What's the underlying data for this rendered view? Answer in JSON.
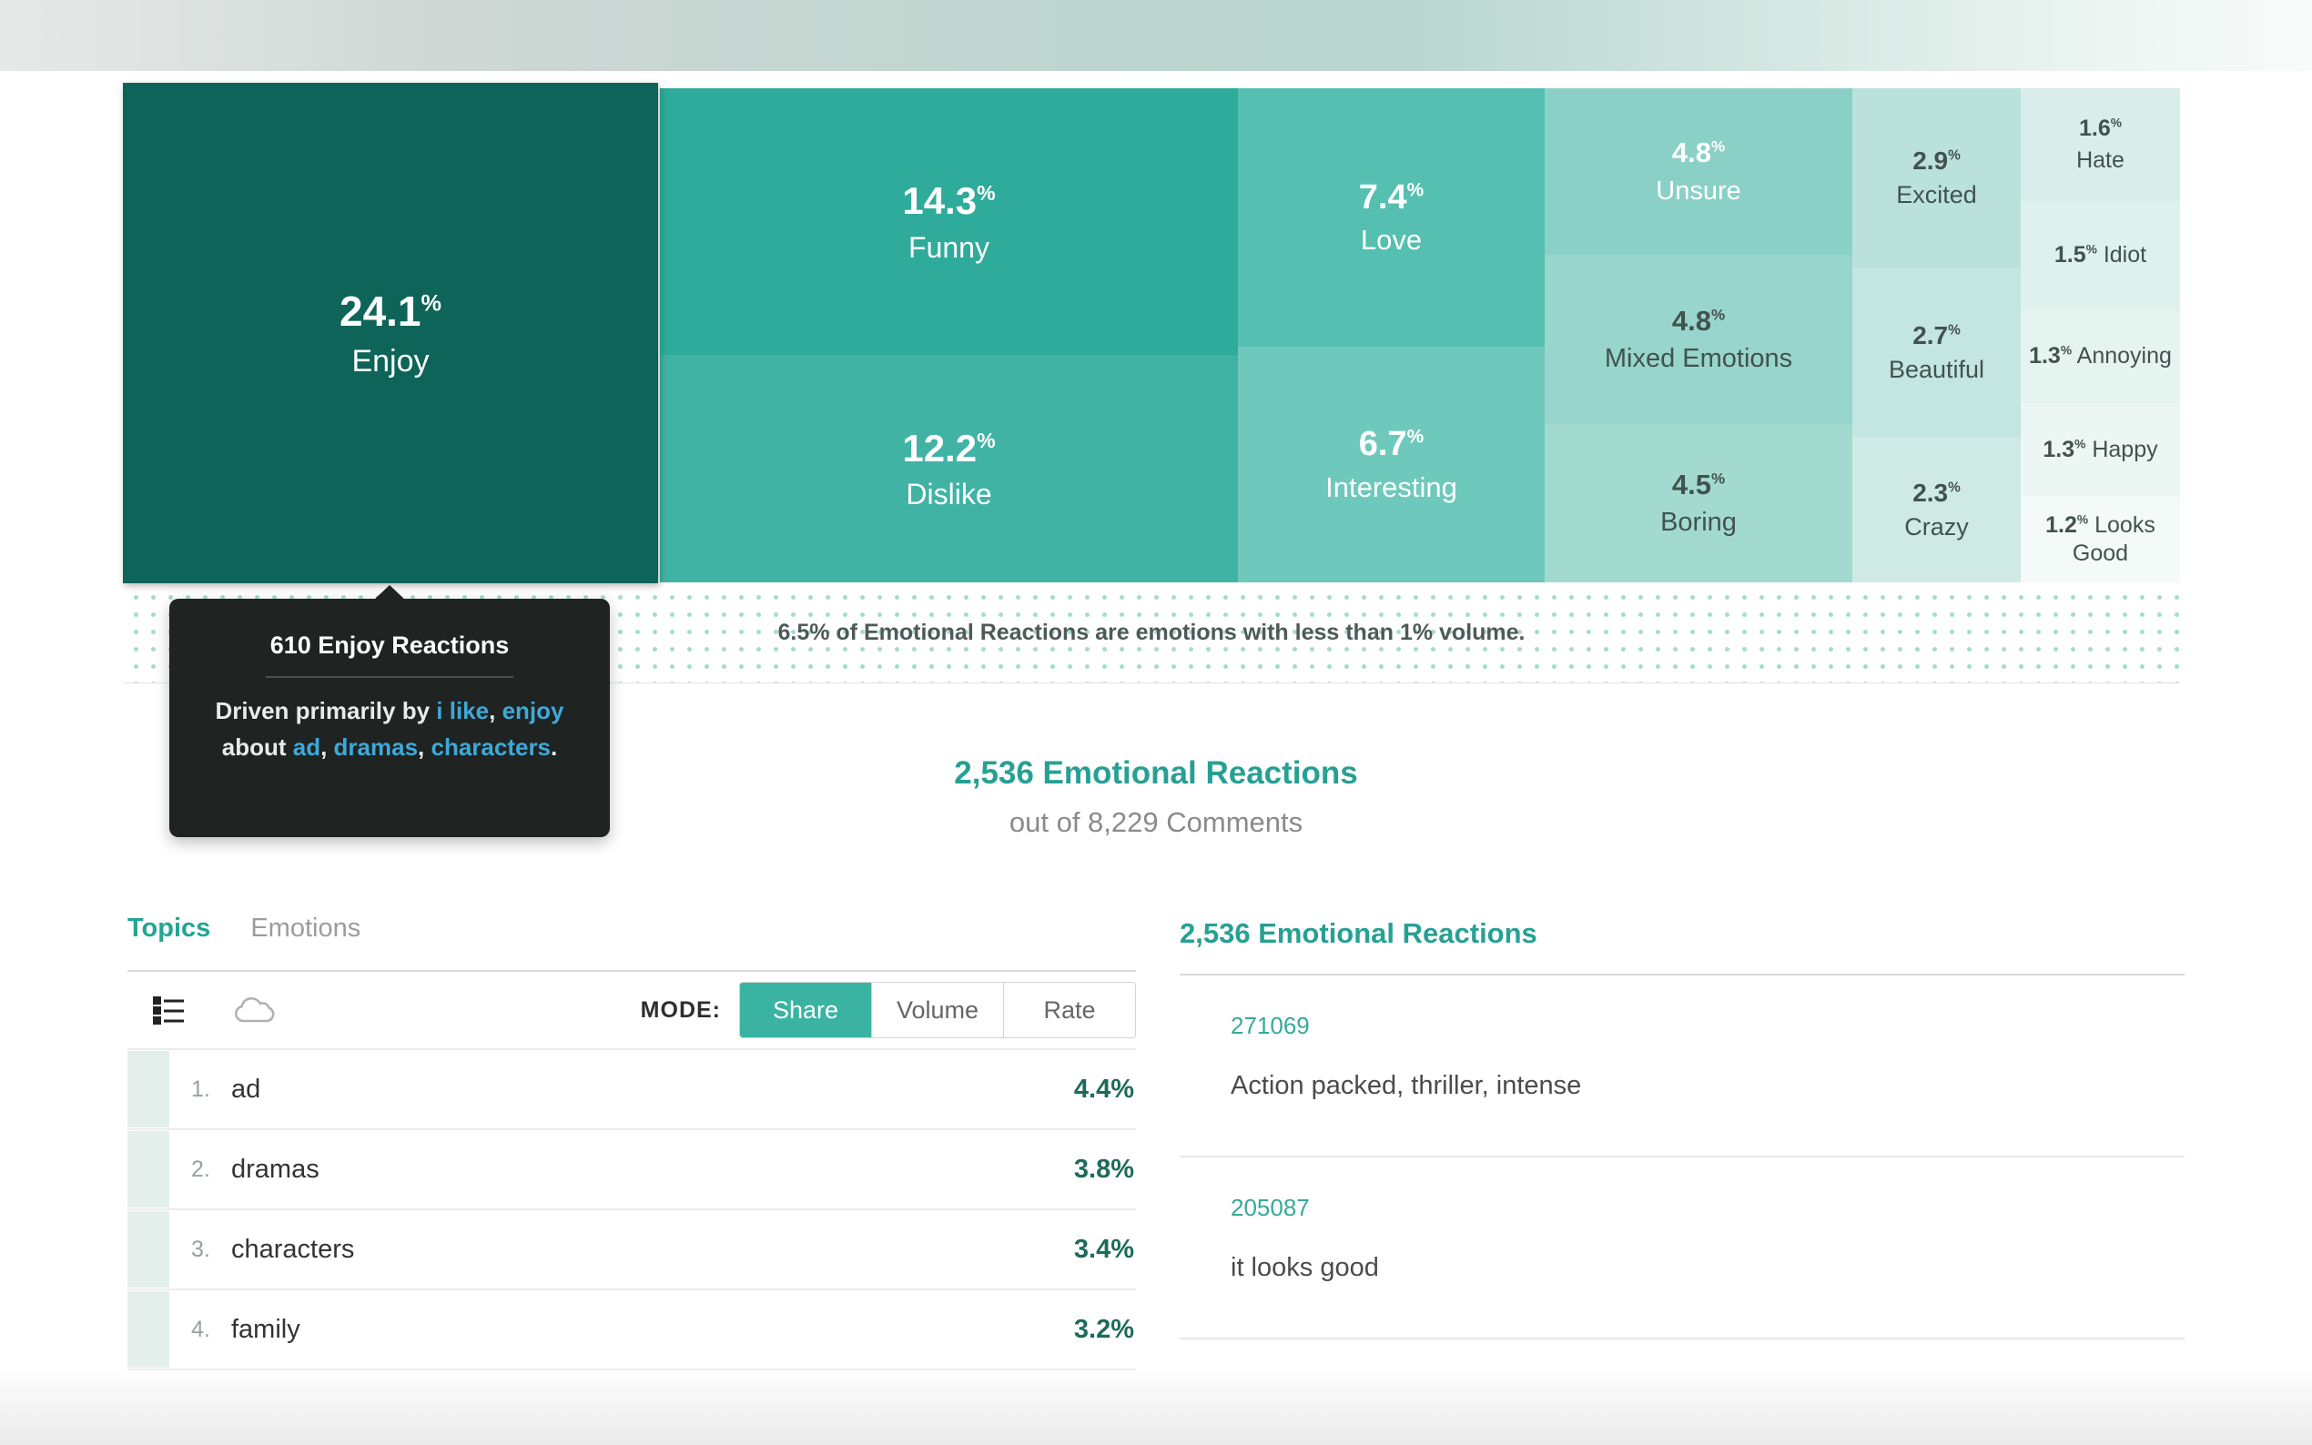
{
  "colors": {
    "accent_teal": "#27a094",
    "tab_active_teal": "#23a595",
    "link_blue": "#3ea9d8",
    "share_button_teal": "#3ab3a2",
    "percent_dark_teal": "#1d6b5a",
    "comment_id_teal": "#39a99a",
    "tooltip_bg": "#1f2322"
  },
  "treemap": {
    "footnote": "6.5% of Emotional Reactions are emotions with less than 1% volume.",
    "cells": [
      {
        "id": "enjoy",
        "value": "24.1",
        "unit": "%",
        "label": "Enjoy",
        "bg": "#0e6458",
        "fg": "#ffffff"
      },
      {
        "id": "funny",
        "value": "14.3",
        "unit": "%",
        "label": "Funny",
        "bg": "#2fab9b",
        "fg": "#ffffff"
      },
      {
        "id": "dislike",
        "value": "12.2",
        "unit": "%",
        "label": "Dislike",
        "bg": "#40b3a4",
        "fg": "#ffffff"
      },
      {
        "id": "love",
        "value": "7.4",
        "unit": "%",
        "label": "Love",
        "bg": "#55bfb1",
        "fg": "#ffffff"
      },
      {
        "id": "interesting",
        "value": "6.7",
        "unit": "%",
        "label": "Interesting",
        "bg": "#6ec9bc",
        "fg": "#ffffff"
      },
      {
        "id": "unsure",
        "value": "4.8",
        "unit": "%",
        "label": "Unsure",
        "bg": "#8ad0c6",
        "fg": "#ffffff"
      },
      {
        "id": "mixed",
        "value": "4.8",
        "unit": "%",
        "label": "Mixed Emotions",
        "bg": "#98d5cc",
        "fg": "#42524e"
      },
      {
        "id": "boring",
        "value": "4.5",
        "unit": "%",
        "label": "Boring",
        "bg": "#a3dad0",
        "fg": "#42524e"
      },
      {
        "id": "excited",
        "value": "2.9",
        "unit": "%",
        "label": "Excited",
        "bg": "#bae2db",
        "fg": "#42524e"
      },
      {
        "id": "beautiful",
        "value": "2.7",
        "unit": "%",
        "label": "Beautiful",
        "bg": "#c4e6e0",
        "fg": "#42524e"
      },
      {
        "id": "crazy",
        "value": "2.3",
        "unit": "%",
        "label": "Crazy",
        "bg": "#cfeae5",
        "fg": "#42524e"
      },
      {
        "id": "hate",
        "value": "1.6",
        "unit": "%",
        "label": "Hate",
        "bg": "#d9eeea",
        "fg": "#42524e"
      },
      {
        "id": "idiot",
        "value": "1.5",
        "unit": "%",
        "label": "Idiot",
        "bg": "#dff1ed",
        "fg": "#42524e"
      },
      {
        "id": "annoying",
        "value": "1.3",
        "unit": "%",
        "label": "Annoying",
        "bg": "#e6f4f0",
        "fg": "#42524e"
      },
      {
        "id": "happy",
        "value": "1.3",
        "unit": "%",
        "label": "Happy",
        "bg": "#ecf6f3",
        "fg": "#42524e"
      },
      {
        "id": "looksgood",
        "value": "1.2",
        "unit": "%",
        "label": "Looks Good",
        "bg": "#f3faf7",
        "fg": "#42524e"
      }
    ]
  },
  "chart_data": {
    "type": "treemap",
    "title": "2,536 Emotional Reactions",
    "categories": [
      "Enjoy",
      "Funny",
      "Dislike",
      "Love",
      "Interesting",
      "Unsure",
      "Mixed Emotions",
      "Boring",
      "Excited",
      "Beautiful",
      "Crazy",
      "Hate",
      "Idiot",
      "Annoying",
      "Happy",
      "Looks Good"
    ],
    "values": [
      24.1,
      14.3,
      12.2,
      7.4,
      6.7,
      4.8,
      4.8,
      4.5,
      2.9,
      2.7,
      2.3,
      1.6,
      1.5,
      1.3,
      1.3,
      1.2
    ],
    "other_below_1pct": 6.5,
    "footnote": "6.5% of Emotional Reactions are emotions with less than 1% volume.",
    "total_reactions": 2536,
    "total_comments": 8229
  },
  "tooltip": {
    "title": "610 Enjoy Reactions",
    "segments": [
      {
        "text": "Driven primarily by ",
        "link": false
      },
      {
        "text": "i like",
        "link": true
      },
      {
        "text": ", ",
        "link": false
      },
      {
        "text": "enjoy",
        "link": true
      },
      {
        "text": " about ",
        "link": false
      },
      {
        "text": "ad",
        "link": true
      },
      {
        "text": ", ",
        "link": false
      },
      {
        "text": "dramas",
        "link": true
      },
      {
        "text": ", ",
        "link": false
      },
      {
        "text": "characters",
        "link": true
      },
      {
        "text": ".",
        "link": false
      }
    ]
  },
  "summary": {
    "title": "2,536 Emotional Reactions",
    "subtitle": "out of 8,229 Comments"
  },
  "topics_panel": {
    "tabs": [
      {
        "label": "Topics",
        "active": true
      },
      {
        "label": "Emotions",
        "active": false
      }
    ],
    "mode_label": "MODE:",
    "modes": [
      {
        "label": "Share",
        "active": true
      },
      {
        "label": "Volume",
        "active": false
      },
      {
        "label": "Rate",
        "active": false
      }
    ],
    "icons": [
      "list-view-icon",
      "word-cloud-icon"
    ],
    "rows": [
      {
        "rank": "1.",
        "topic": "ad",
        "share": "4.4%"
      },
      {
        "rank": "2.",
        "topic": "dramas",
        "share": "3.8%"
      },
      {
        "rank": "3.",
        "topic": "characters",
        "share": "3.4%"
      },
      {
        "rank": "4.",
        "topic": "family",
        "share": "3.2%"
      }
    ]
  },
  "reactions_panel": {
    "title": "2,536 Emotional Reactions",
    "comments": [
      {
        "id": "271069",
        "text": "Action packed, thriller, intense"
      },
      {
        "id": "205087",
        "text": "it looks good"
      }
    ]
  }
}
